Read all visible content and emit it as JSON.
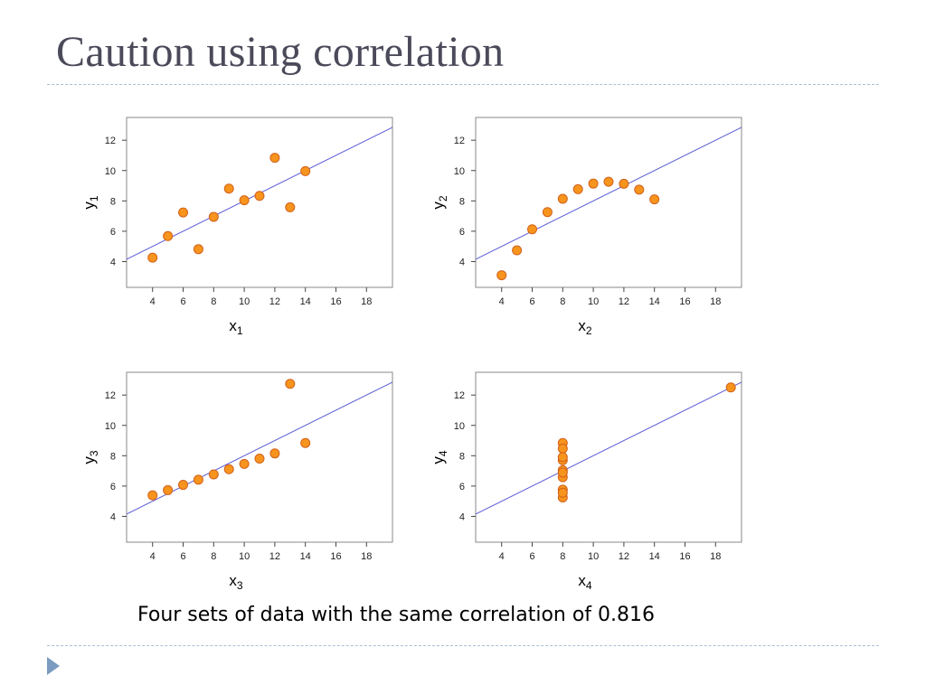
{
  "title": "Caution using correlation",
  "caption": "Four sets of data with the same correlation of 0.816",
  "colors": {
    "point_fill": "#f7941d",
    "point_stroke": "#d2611a",
    "fit_line": "#5b5bd6",
    "frame": "#888888"
  },
  "chart_data": [
    {
      "type": "scatter",
      "xlabel": "x1",
      "ylabel": "y1",
      "xlim": [
        2.3,
        19.7
      ],
      "ylim": [
        2.3,
        13.5
      ],
      "xticks": [
        4,
        6,
        8,
        10,
        12,
        14,
        16,
        18
      ],
      "yticks": [
        4,
        6,
        8,
        10,
        12
      ],
      "fit_line": {
        "intercept": 3.0,
        "slope": 0.5
      },
      "x": [
        10,
        8,
        13,
        9,
        11,
        14,
        6,
        4,
        12,
        7,
        5
      ],
      "y": [
        8.04,
        6.95,
        7.58,
        8.81,
        8.33,
        9.96,
        7.24,
        4.26,
        10.84,
        4.82,
        5.68
      ],
      "grid": false
    },
    {
      "type": "scatter",
      "xlabel": "x2",
      "ylabel": "y2",
      "xlim": [
        2.3,
        19.7
      ],
      "ylim": [
        2.3,
        13.5
      ],
      "xticks": [
        4,
        6,
        8,
        10,
        12,
        14,
        16,
        18
      ],
      "yticks": [
        4,
        6,
        8,
        10,
        12
      ],
      "fit_line": {
        "intercept": 3.0,
        "slope": 0.5
      },
      "x": [
        10,
        8,
        13,
        9,
        11,
        14,
        6,
        4,
        12,
        7,
        5
      ],
      "y": [
        9.14,
        8.14,
        8.74,
        8.77,
        9.26,
        8.1,
        6.13,
        3.1,
        9.13,
        7.26,
        4.74
      ],
      "grid": false
    },
    {
      "type": "scatter",
      "xlabel": "x3",
      "ylabel": "y3",
      "xlim": [
        2.3,
        19.7
      ],
      "ylim": [
        2.3,
        13.5
      ],
      "xticks": [
        4,
        6,
        8,
        10,
        12,
        14,
        16,
        18
      ],
      "yticks": [
        4,
        6,
        8,
        10,
        12
      ],
      "fit_line": {
        "intercept": 3.0,
        "slope": 0.5
      },
      "x": [
        10,
        8,
        13,
        9,
        11,
        14,
        6,
        4,
        12,
        7,
        5
      ],
      "y": [
        7.46,
        6.77,
        12.74,
        7.11,
        7.81,
        8.84,
        6.08,
        5.39,
        8.15,
        6.42,
        5.73
      ],
      "grid": false
    },
    {
      "type": "scatter",
      "xlabel": "x4",
      "ylabel": "y4",
      "xlim": [
        2.3,
        19.7
      ],
      "ylim": [
        2.3,
        13.5
      ],
      "xticks": [
        4,
        6,
        8,
        10,
        12,
        14,
        16,
        18
      ],
      "yticks": [
        4,
        6,
        8,
        10,
        12
      ],
      "fit_line": {
        "intercept": 3.0,
        "slope": 0.5
      },
      "x": [
        8,
        8,
        8,
        8,
        8,
        8,
        8,
        19,
        8,
        8,
        8
      ],
      "y": [
        6.58,
        5.76,
        7.71,
        8.84,
        8.47,
        7.04,
        5.25,
        12.5,
        5.56,
        7.91,
        6.89
      ],
      "grid": false
    }
  ]
}
